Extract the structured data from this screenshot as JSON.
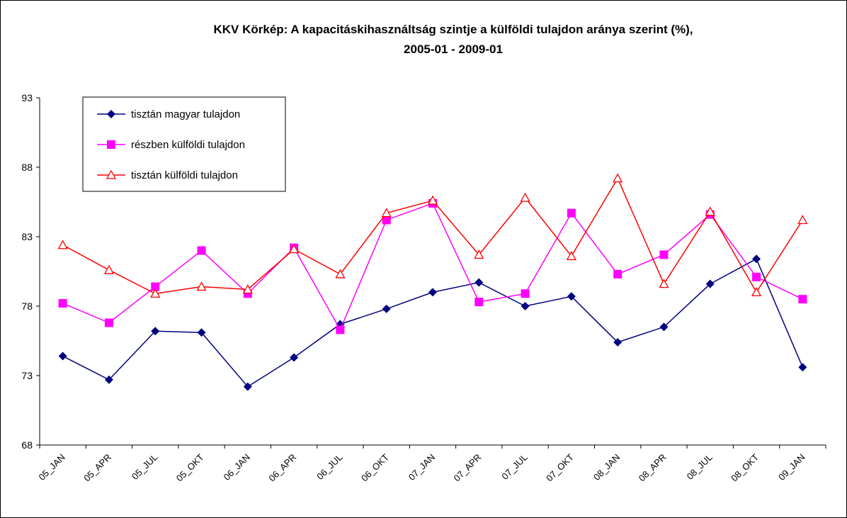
{
  "chart_data": {
    "type": "line",
    "title": "KKV Körkép: A kapacitáskihasználtság szintje a külföldi tulajdon aránya szerint (%),",
    "subtitle": "2005-01 - 2009-01",
    "categories": [
      "05_JAN",
      "05_APR",
      "05_JUL",
      "05_OKT",
      "06_JAN",
      "06_APR",
      "06_JUL",
      "06_OKT",
      "07_JAN",
      "07_APR",
      "07_JUL",
      "07_OKT",
      "08_JAN",
      "08_APR",
      "08_JUL",
      "08_OKT",
      "09_JAN"
    ],
    "series": [
      {
        "name": "tisztán magyar tulajdon",
        "color": "#000080",
        "marker": "diamond",
        "values": [
          74.4,
          72.7,
          76.2,
          76.1,
          72.2,
          74.3,
          76.7,
          77.8,
          79.0,
          79.7,
          78.0,
          78.7,
          75.4,
          76.5,
          79.6,
          81.4,
          73.6
        ]
      },
      {
        "name": "részben külföldi tulajdon",
        "color": "#ff00ff",
        "marker": "square",
        "values": [
          78.2,
          76.8,
          79.4,
          82.0,
          78.9,
          82.2,
          76.3,
          84.2,
          85.4,
          78.3,
          78.9,
          84.7,
          80.3,
          81.7,
          84.6,
          80.1,
          78.5
        ]
      },
      {
        "name": "tisztán külföldi tulajdon",
        "color": "#ff0000",
        "marker": "triangle",
        "values": [
          82.4,
          80.6,
          78.9,
          79.4,
          79.2,
          82.1,
          80.3,
          84.7,
          85.6,
          81.7,
          85.8,
          81.6,
          87.2,
          79.6,
          84.8,
          79.0,
          84.2
        ]
      }
    ],
    "ylim": [
      68,
      93
    ],
    "yticks": [
      68,
      73,
      78,
      83,
      88,
      93
    ],
    "grid": false,
    "legend": "upper left"
  }
}
